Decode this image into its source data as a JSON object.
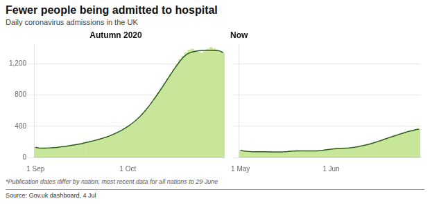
{
  "title": "Fewer people being admitted to hospital",
  "subtitle": "Daily coronavirus admissions in the UK",
  "annotations": [
    "*Publication dates differ by nation, most recent data for all nations to 29 June",
    "Source: Gov.uk dashboard, 4 Jul"
  ],
  "chart_data": [
    {
      "type": "bar",
      "title": "Autumn 2020",
      "categories": [
        "1 Sep",
        null,
        null,
        null,
        null,
        null,
        null,
        null,
        null,
        null,
        null,
        null,
        null,
        null,
        null,
        null,
        null,
        null,
        null,
        null,
        null,
        null,
        null,
        null,
        null,
        null,
        null,
        null,
        null,
        null,
        "1 Oct",
        null,
        null,
        null,
        null,
        null,
        null,
        null,
        null,
        null,
        null,
        null,
        null,
        null,
        null,
        null,
        null,
        null,
        null,
        null,
        null,
        null,
        null,
        null,
        null,
        null,
        null,
        null,
        null,
        null,
        null,
        null
      ],
      "series": [
        {
          "type": "bar",
          "color": "#c8e69a",
          "values": [
            130,
            115,
            120,
            125,
            110,
            118,
            125,
            135,
            128,
            140,
            145,
            155,
            150,
            162,
            170,
            180,
            185,
            195,
            205,
            215,
            225,
            238,
            248,
            260,
            272,
            285,
            305,
            325,
            348,
            375,
            395,
            415,
            445,
            480,
            520,
            565,
            610,
            655,
            710,
            770,
            830,
            890,
            950,
            1010,
            1070,
            1130,
            1190,
            1255,
            1300,
            1345,
            1380,
            1390,
            1370,
            1355,
            1340,
            1360,
            1390,
            1410,
            1395,
            1370,
            1350,
            1340
          ]
        },
        {
          "type": "line",
          "color": "#2d5a1b",
          "values": [
            130,
            121.67,
            120,
            120.43,
            121.14,
            123,
            125.86,
            128.71,
            135.14,
            139.71,
            145,
            150,
            157.43,
            163.86,
            171,
            178.14,
            187.43,
            196.43,
            206.14,
            215.86,
            226.57,
            237.57,
            249,
            261.86,
            276.14,
            291.86,
            310,
            329.29,
            349.71,
            372.57,
            397.57,
            425.43,
            456.43,
            490,
            527.14,
            569.29,
            615.71,
            665.71,
            718.57,
            773.57,
            830.71,
            890,
            950,
            1010,
            1070.71,
            1129.29,
            1185.71,
            1238.57,
            1284.29,
            1318.57,
            1342.14,
            1354.29,
            1362.86,
            1369.29,
            1373.57,
            1374.29,
            1374.29,
            1373.57,
            1373.57,
            1375.83,
            1363.75,
            1345
          ]
        }
      ],
      "ylim": [
        0,
        1450
      ],
      "yticks": [
        0,
        400,
        800,
        {
          "value": 1200,
          "label": "1,200"
        }
      ],
      "grid": true
    },
    {
      "type": "bar",
      "title": "Now",
      "categories": [
        "1 May",
        null,
        null,
        null,
        null,
        null,
        null,
        null,
        null,
        null,
        null,
        null,
        null,
        null,
        null,
        null,
        null,
        null,
        null,
        null,
        null,
        null,
        null,
        null,
        null,
        null,
        null,
        null,
        null,
        null,
        null,
        "1 Jun",
        null,
        null,
        null,
        null,
        null,
        null,
        null,
        null,
        null,
        null,
        null,
        null,
        null,
        null,
        null,
        null,
        null,
        null,
        null,
        null,
        null,
        null,
        null,
        null,
        null,
        null,
        null,
        null,
        null,
        null
      ],
      "series": [
        {
          "type": "bar",
          "color": "#c8e69a",
          "values": [
            90,
            82,
            78,
            75,
            72,
            70,
            68,
            73,
            79,
            75,
            72,
            70,
            68,
            65,
            68,
            72,
            76,
            80,
            83,
            87,
            90,
            88,
            85,
            83,
            80,
            78,
            82,
            86,
            90,
            95,
            102,
            108,
            115,
            120,
            118,
            115,
            112,
            118,
            125,
            130,
            138,
            145,
            152,
            160,
            168,
            178,
            190,
            205,
            218,
            230,
            245,
            258,
            270,
            280,
            292,
            305,
            318,
            330,
            342,
            355,
            360,
            368
          ]
        },
        {
          "type": "line",
          "color": "#2d5a1b",
          "values": [
            90,
            83.33,
            79.4,
            76.43,
            74,
            73.57,
            73.14,
            72.71,
            72.43,
            72.14,
            71.71,
            71,
            70,
            70.14,
            71.29,
            73.14,
            75.86,
            79.43,
            82.29,
            84.14,
            85.14,
            85.14,
            84.43,
            83.71,
            83.14,
            83.43,
            84.86,
            87.57,
            91.57,
            96.86,
            102.29,
            106.86,
            110.43,
            112.86,
            115.14,
            117.57,
            119.71,
            122.29,
            126.14,
            131.43,
            138.29,
            145.43,
            153,
            161.57,
            171.14,
            181.57,
            192.71,
            204.86,
            217.71,
            230.86,
            243.71,
            256.14,
            268.57,
            281.14,
            293.29,
            305.29,
            317.43,
            328.86,
            339.71,
            345.5,
            356.25,
            364
          ]
        }
      ],
      "ylim": [
        0,
        1450
      ],
      "yticks": [
        0,
        400,
        800,
        1200
      ],
      "grid": true,
      "tick_labels": "x"
    }
  ]
}
